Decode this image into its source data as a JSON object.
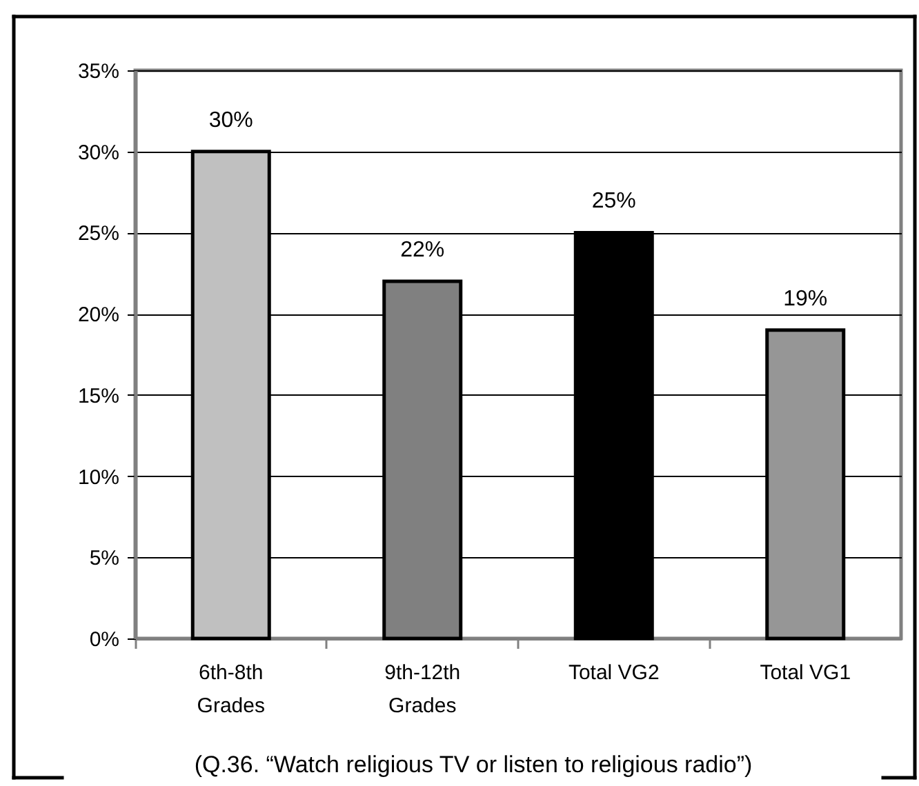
{
  "chart_data": {
    "type": "bar",
    "categories": [
      "6th-8th Grades",
      "9th-12th Grades",
      "Total VG2",
      "Total VG1"
    ],
    "values": [
      30,
      22,
      25,
      19
    ],
    "colors": [
      "#c0c0c0",
      "#808080",
      "#000000",
      "#969696"
    ],
    "value_labels": [
      "30%",
      "22%",
      "25%",
      "19%"
    ],
    "ylim": [
      0,
      35
    ],
    "yticks": [
      {
        "value": 0,
        "label": "0%"
      },
      {
        "value": 5,
        "label": "5%"
      },
      {
        "value": 10,
        "label": "10%"
      },
      {
        "value": 15,
        "label": "15%"
      },
      {
        "value": 20,
        "label": "20%"
      },
      {
        "value": 25,
        "label": "25%"
      },
      {
        "value": 30,
        "label": "30%"
      },
      {
        "value": 35,
        "label": "35%"
      }
    ],
    "grid": "y",
    "annotations": [
      "(Q.36. “Watch religious TV or listen to religious radio”)"
    ]
  }
}
